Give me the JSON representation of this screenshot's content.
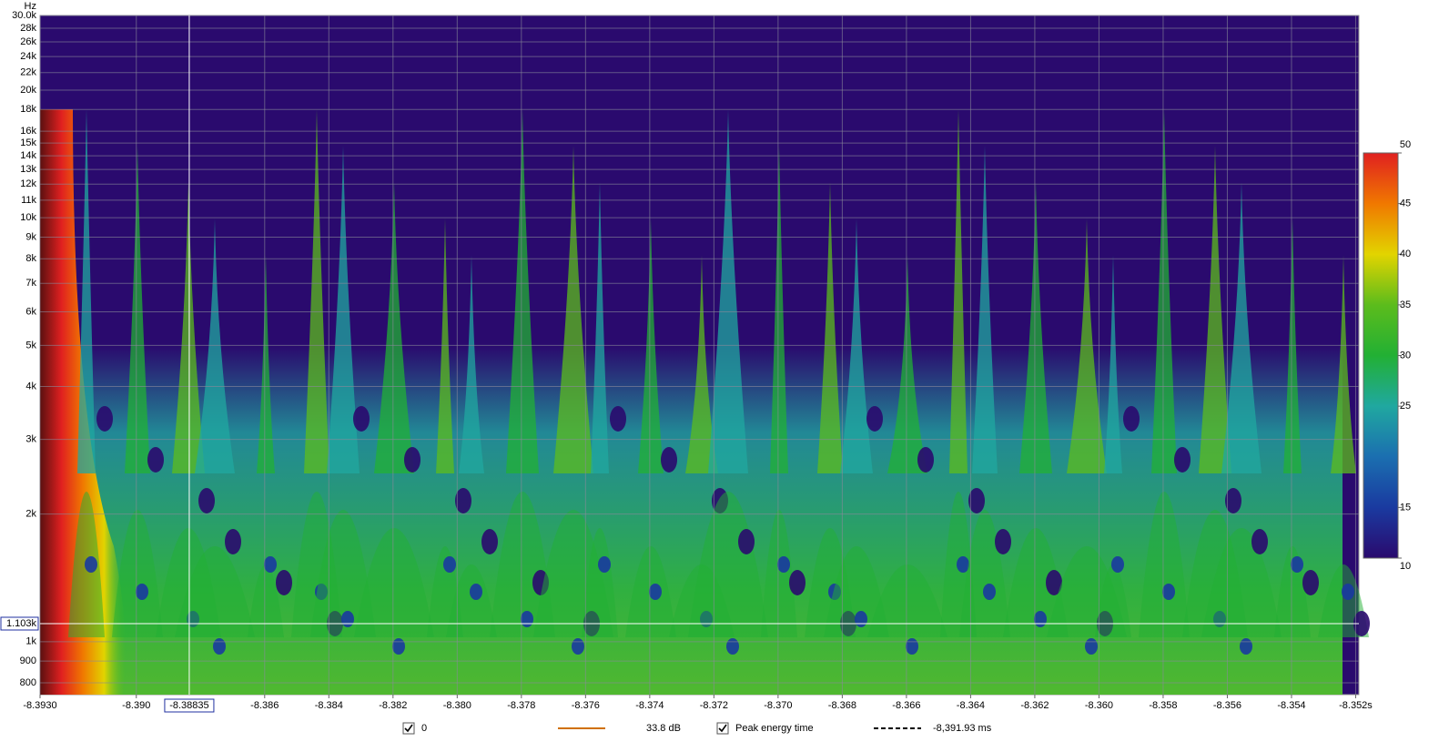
{
  "chart_data": {
    "type": "heatmap",
    "y_unit": "Hz",
    "xlim": [
      -8.393,
      -8.3519
    ],
    "xticks": [
      {
        "value": -8.393,
        "label": "-8.3930"
      },
      {
        "value": -8.39,
        "label": "-8.390"
      },
      -8.386,
      -8.384,
      -8.382,
      {
        "value": -8.38,
        "label": "-8.380"
      },
      -8.378,
      -8.376,
      -8.374,
      -8.372,
      {
        "value": -8.37,
        "label": "-8.370"
      },
      -8.368,
      -8.366,
      -8.364,
      -8.362,
      {
        "value": -8.36,
        "label": "-8.360"
      },
      -8.358,
      -8.356,
      -8.354,
      {
        "value": -8.352,
        "label": "-8.352s"
      }
    ],
    "ylim": [
      750,
      30000
    ],
    "yscale": "log",
    "yticks": [
      {
        "value": 30000,
        "label": "30.0k"
      },
      {
        "value": 28000,
        "label": "28k"
      },
      {
        "value": 26000,
        "label": "26k"
      },
      {
        "value": 24000,
        "label": "24k"
      },
      {
        "value": 22000,
        "label": "22k"
      },
      {
        "value": 20000,
        "label": "20k"
      },
      {
        "value": 18000,
        "label": "18k"
      },
      {
        "value": 16000,
        "label": "16k"
      },
      {
        "value": 15000,
        "label": "15k"
      },
      {
        "value": 14000,
        "label": "14k"
      },
      {
        "value": 13000,
        "label": "13k"
      },
      {
        "value": 12000,
        "label": "12k"
      },
      {
        "value": 11000,
        "label": "11k"
      },
      {
        "value": 10000,
        "label": "10k"
      },
      {
        "value": 9000,
        "label": "9k"
      },
      {
        "value": 8000,
        "label": "8k"
      },
      {
        "value": 7000,
        "label": "7k"
      },
      {
        "value": 6000,
        "label": "6k"
      },
      {
        "value": 5000,
        "label": "5k"
      },
      {
        "value": 4000,
        "label": "4k"
      },
      {
        "value": 3000,
        "label": "3k"
      },
      {
        "value": 2000,
        "label": "2k"
      },
      {
        "value": 1000,
        "label": "1k"
      },
      900,
      800
    ],
    "grid": true,
    "colorbar": {
      "zlim": [
        10,
        50
      ],
      "zticks": [
        50,
        45,
        40,
        35,
        30,
        25,
        15,
        10
      ],
      "colors": [
        "#2a0a6e",
        "#1a3aa0",
        "#1b6fb0",
        "#20a8a0",
        "#22b034",
        "#5cbc1c",
        "#e2d400",
        "#f07800",
        "#e02020"
      ]
    },
    "cursor": {
      "x": -8.38835,
      "y": {
        "value": 1103,
        "label": "1.103k"
      }
    },
    "legend": [
      {
        "marker": "checkbox",
        "label": "0",
        "color": "#d07000"
      },
      {
        "marker": "line",
        "label": "33.8 dB",
        "color": "#d07000"
      },
      {
        "marker": "checkbox",
        "label": "Peak energy time",
        "color": "#000000"
      },
      {
        "marker": "dashed-line",
        "label": "-8,391.93 ms",
        "color": "#000000"
      }
    ]
  }
}
